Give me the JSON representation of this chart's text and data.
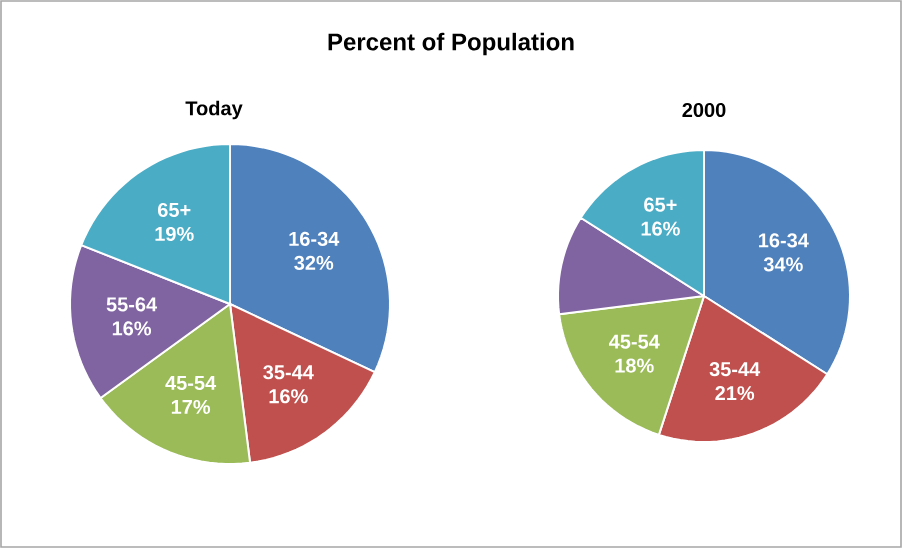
{
  "chart_data": [
    {
      "type": "pie",
      "title": "Percent of Population",
      "subtitle": "Today",
      "categories": [
        "16-34",
        "35-44",
        "45-54",
        "55-64",
        "65+"
      ],
      "values": [
        32,
        16,
        17,
        16,
        19
      ],
      "value_labels": [
        "32%",
        "16%",
        "17%",
        "16%",
        "19%"
      ],
      "colors": [
        "#4f81bd",
        "#c0504d",
        "#9bbb59",
        "#8064a2",
        "#4bacc6"
      ]
    },
    {
      "type": "pie",
      "subtitle": "2000",
      "categories": [
        "16-34",
        "35-44",
        "45-54",
        null,
        "65+"
      ],
      "values": [
        34,
        21,
        18,
        11,
        16
      ],
      "value_labels": [
        "34%",
        "21%",
        "18%",
        null,
        "16%"
      ],
      "colors": [
        "#4f81bd",
        "#c0504d",
        "#9bbb59",
        "#8064a2",
        "#4bacc6"
      ]
    }
  ]
}
